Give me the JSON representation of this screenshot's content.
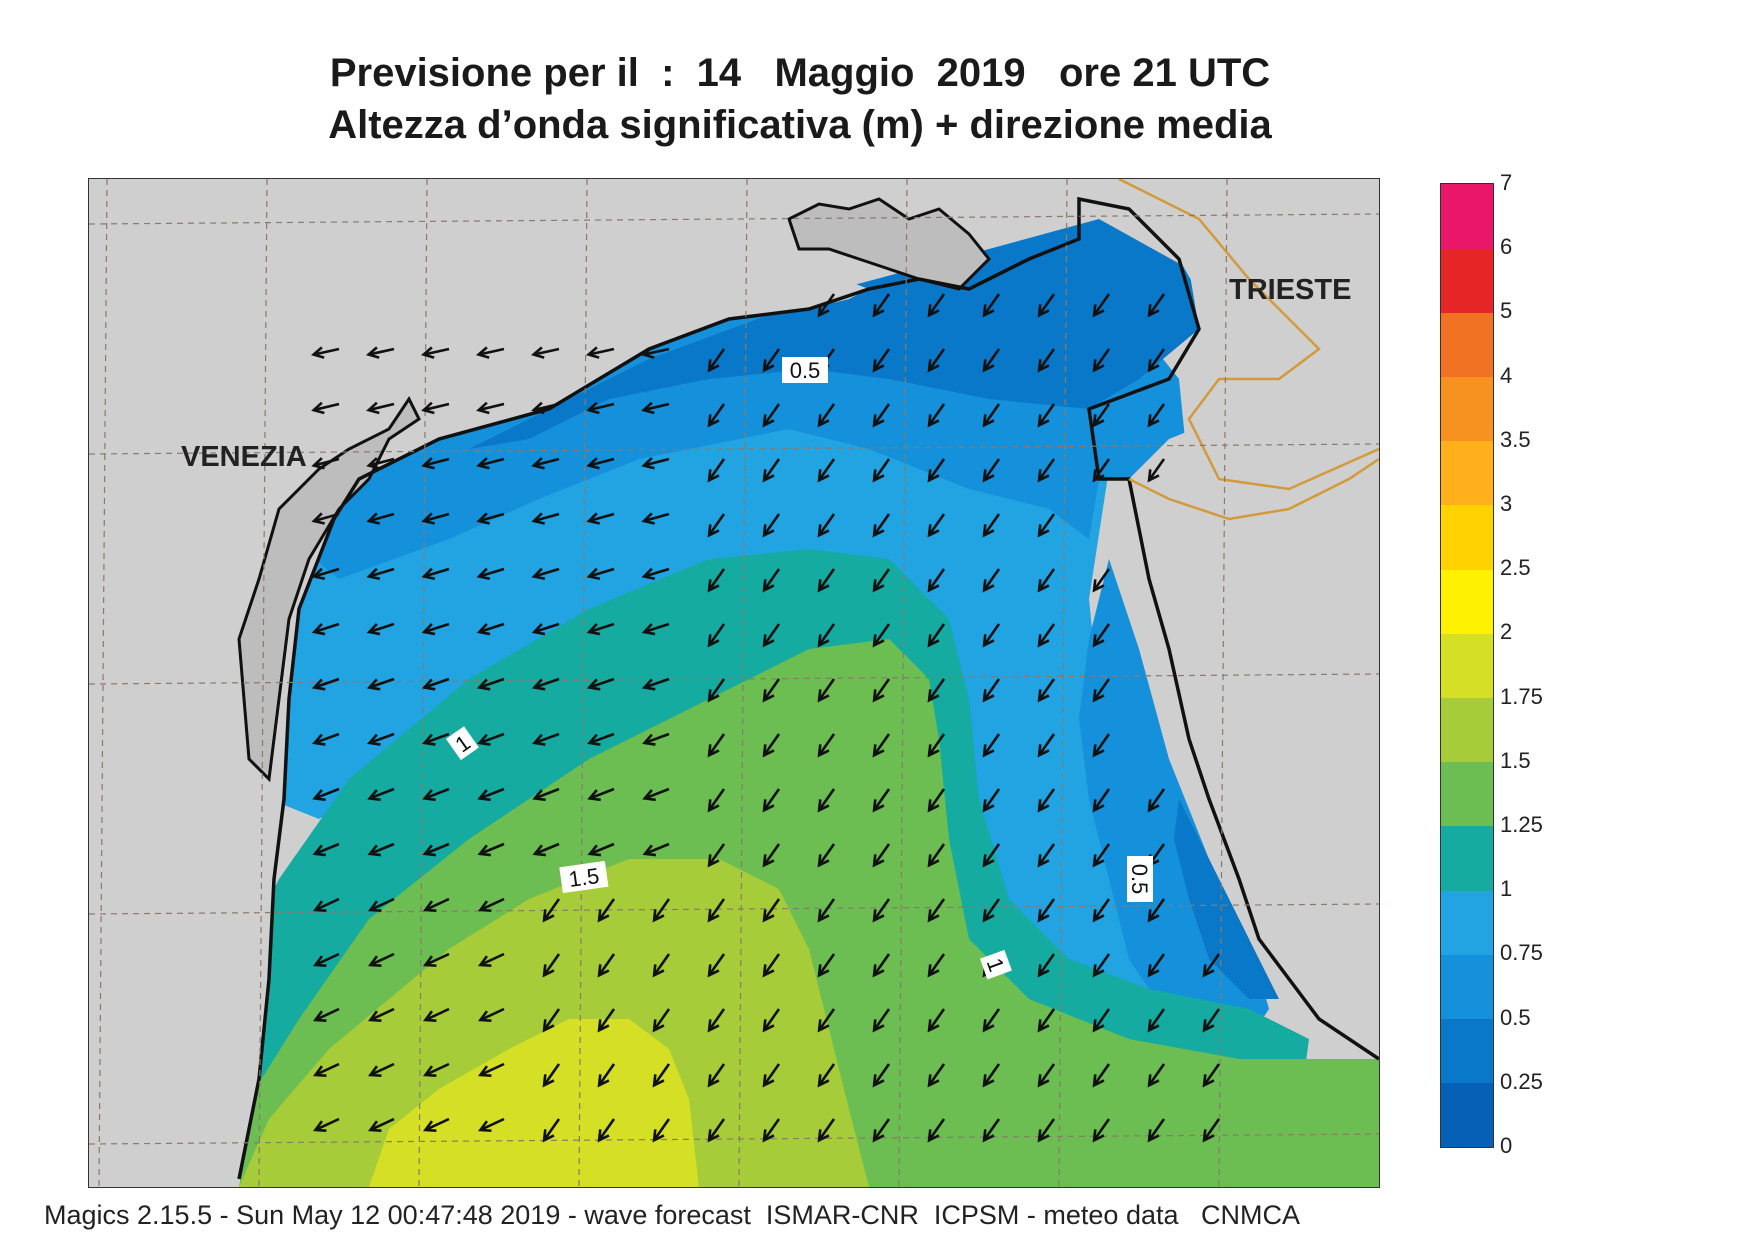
{
  "title_line1": "Previsione per il  :  14   Maggio  2019   ore 21 UTC",
  "title_line2": "Altezza d’onda significativa (m) + direzione media",
  "cities": {
    "venezia": "VENEZIA",
    "trieste": "TRIESTE"
  },
  "contour_labels": [
    "0.5",
    "0.5",
    "1",
    "1",
    "1.5"
  ],
  "legend": {
    "ticks": [
      "0",
      "0.25",
      "0.5",
      "0.75",
      "1",
      "1.25",
      "1.5",
      "1.75",
      "2",
      "2.5",
      "3",
      "3.5",
      "4",
      "5",
      "6",
      "7"
    ],
    "colors": [
      "#0561b5",
      "#0a78c8",
      "#1590da",
      "#22a3e2",
      "#15aba0",
      "#6cbd52",
      "#a6cc3a",
      "#d4df25",
      "#fff200",
      "#ffd200",
      "#ffb01a",
      "#f79220",
      "#f27224",
      "#e62526",
      "#e9166a"
    ]
  },
  "colors": {
    "land": "#cfcfcf",
    "lagoon": "#bdbdbd",
    "coast": "#111111",
    "border": "#d29a3a",
    "grid": "#8a7a6a"
  },
  "footer": "Magics 2.15.5 - Sun May 12 00:47:48 2019 - wave forecast  ISMAR-CNR  ICPSM - meteo data   CNMCA"
}
